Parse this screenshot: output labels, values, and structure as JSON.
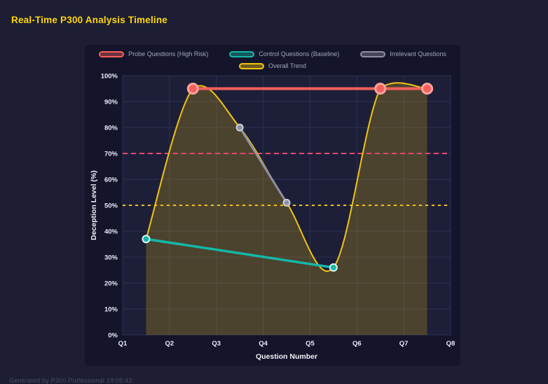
{
  "app": {
    "title": "Real-Time P300 Analysis Timeline",
    "footer": "Generated by P300 Professional  19:05:43"
  },
  "colors": {
    "page_bg": "#1d1e33",
    "panel_bg": "#14152b",
    "plot_bg": "#1d1f38",
    "grid": "#2d3052",
    "title": "#ffd60a",
    "tick_text": "#e9ebf5",
    "axis_title_text": "#f0f2f8",
    "legend_text": "#a2a6ba",
    "footer_text": "#4b4d62"
  },
  "chart_data": {
    "type": "line",
    "title": "",
    "xlabel": "Question Number",
    "ylabel": "Deception Level (%)",
    "xlim": [
      1,
      8
    ],
    "ylim": [
      0,
      100
    ],
    "x_tick_values": [
      1,
      2,
      3,
      4,
      5,
      6,
      7,
      8
    ],
    "x_tick_labels": [
      "Q1",
      "Q2",
      "Q3",
      "Q4",
      "Q5",
      "Q6",
      "Q7",
      "Q8"
    ],
    "y_tick_values": [
      0,
      10,
      20,
      30,
      40,
      50,
      60,
      70,
      80,
      90,
      100
    ],
    "y_tick_labels": [
      "0%",
      "10%",
      "20%",
      "30%",
      "40%",
      "50%",
      "60%",
      "70%",
      "80%",
      "90%",
      "100%"
    ],
    "grid": true,
    "legend_position": "top",
    "series": [
      {
        "name": "Probe Questions (High Risk)",
        "color": "#f4605c",
        "point_stroke": "#ffa39e",
        "point_radius": 7,
        "point_stroke_width": 3,
        "line_width": 4,
        "smooth": false,
        "points": [
          [
            2.5,
            95
          ],
          [
            6.5,
            95
          ],
          [
            7.5,
            95
          ]
        ]
      },
      {
        "name": "Control Questions (Baseline)",
        "color": "#14b8a8",
        "point_stroke": "#d6f5f0",
        "point_radius": 5,
        "point_stroke_width": 2,
        "line_width": 3.5,
        "smooth": false,
        "points": [
          [
            1.5,
            37
          ],
          [
            5.5,
            26
          ]
        ]
      },
      {
        "name": "Irrelevant Questions",
        "color": "#8e8fa0",
        "point_stroke": "#cfd0da",
        "point_radius": 4.5,
        "point_stroke_width": 2,
        "line_width": 3,
        "smooth": false,
        "points": [
          [
            3.5,
            80
          ],
          [
            4.5,
            51
          ]
        ]
      },
      {
        "name": "Overall Trend",
        "color": "#f2c40f",
        "area_fill": "rgba(242,196,15,0.22)",
        "point_radius": 0,
        "point_stroke": "#f2c40f",
        "point_stroke_width": 0,
        "line_width": 2,
        "smooth": true,
        "points": [
          [
            1.5,
            37
          ],
          [
            2.5,
            95
          ],
          [
            3.5,
            80
          ],
          [
            4.5,
            51
          ],
          [
            5.5,
            26
          ],
          [
            6.5,
            95
          ],
          [
            7.5,
            95
          ]
        ]
      }
    ],
    "reference_lines": [
      {
        "value": 70,
        "color": "#e8486e",
        "dash": "7,5"
      },
      {
        "value": 50,
        "color": "#f2c40f",
        "dash": "4,5"
      }
    ]
  }
}
